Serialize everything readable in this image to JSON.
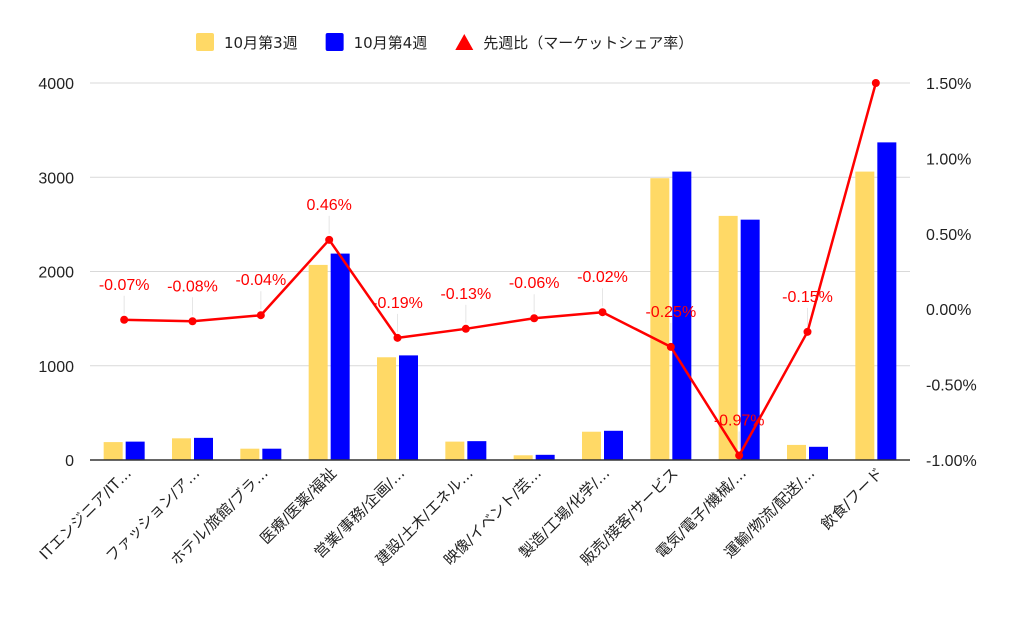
{
  "chart_data": {
    "type": "bar",
    "categories": [
      "ITエンジニア/IT…",
      "ファッション/ア…",
      "ホテル/旅館/ブラ…",
      "医療/医薬/福祉",
      "営業/事務/企画/…",
      "建設/土木/エネル…",
      "映像/イベント/芸…",
      "製造/工場/化学/…",
      "販売/接客/サービス",
      "電気/電子/機械/…",
      "運輸/物流/配送/…",
      "飲食/フード"
    ],
    "series": [
      {
        "name": "10月第3週",
        "kind": "bar",
        "axis": "left",
        "color": "#FFD966",
        "values": [
          190,
          230,
          120,
          2070,
          1090,
          195,
          50,
          300,
          2990,
          2590,
          160,
          3060
        ]
      },
      {
        "name": "10月第4週",
        "kind": "bar",
        "axis": "left",
        "color": "#0000FF",
        "values": [
          195,
          235,
          120,
          2190,
          1110,
          200,
          55,
          310,
          3060,
          2550,
          140,
          3370
        ]
      },
      {
        "name": "先週比（マーケットシェア率）",
        "kind": "line",
        "axis": "right",
        "color": "#FF0000",
        "values": [
          -0.07,
          -0.08,
          -0.04,
          0.46,
          -0.19,
          -0.13,
          -0.06,
          -0.02,
          -0.25,
          -0.97,
          -0.15,
          1.5
        ],
        "labels": [
          "-0.07%",
          "-0.08%",
          "-0.04%",
          "0.46%",
          "-0.19%",
          "-0.13%",
          "-0.06%",
          "-0.02%",
          "-0.25%",
          "-0.97%",
          "-0.15%",
          ""
        ]
      }
    ],
    "y_left": {
      "min": 0,
      "max": 4000,
      "ticks": [
        0,
        1000,
        2000,
        3000,
        4000
      ]
    },
    "y_right": {
      "min": -1.0,
      "max": 1.5,
      "ticks": [
        -1.0,
        -0.5,
        0.0,
        0.5,
        1.0,
        1.5
      ],
      "tick_labels": [
        "-1.00%",
        "-0.50%",
        "0.00%",
        "0.50%",
        "1.00%",
        "1.50%"
      ]
    },
    "grid": true,
    "legend_position": "top"
  }
}
